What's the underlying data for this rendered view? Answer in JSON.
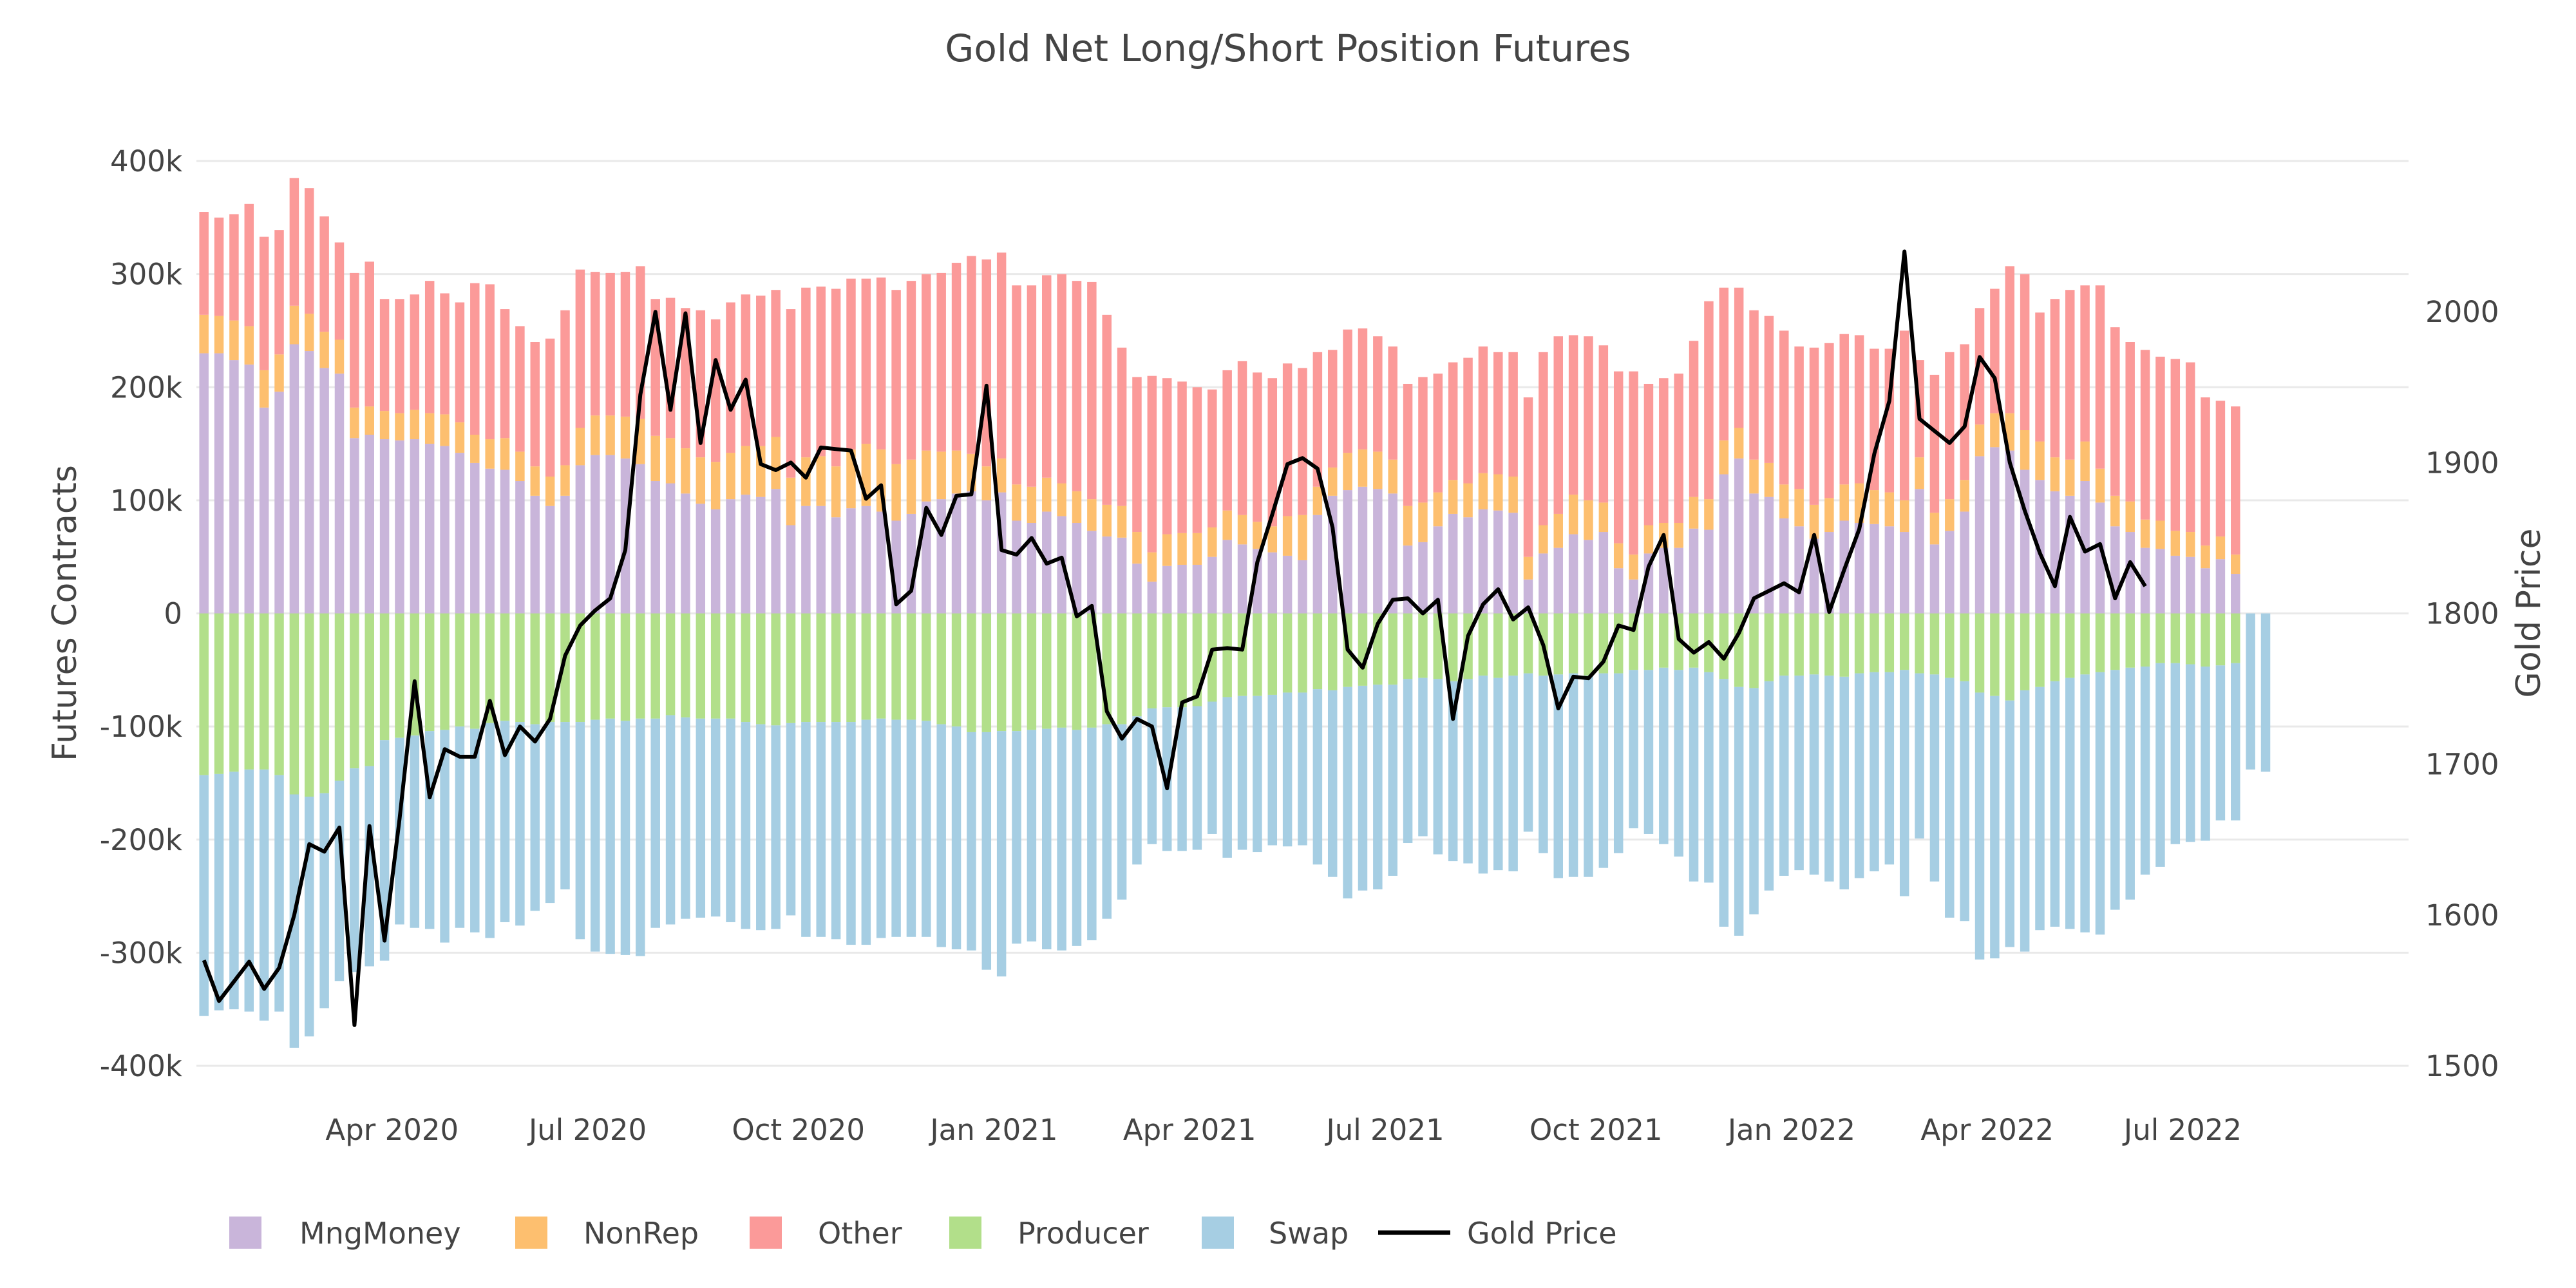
{
  "chart_data": {
    "type": "bar",
    "barmode": "relative",
    "title": "Gold Net Long/Short Position Futures",
    "ylabel": "Futures Contracts",
    "y2label": "Gold Price",
    "ylim": [
      -400000,
      400000
    ],
    "y2lim": [
      1500,
      2100
    ],
    "yticks": [
      -400000,
      -300000,
      -200000,
      -100000,
      0,
      100000,
      200000,
      300000,
      400000
    ],
    "ytick_labels": [
      "-400k",
      "-300k",
      "-200k",
      "-100k",
      "0",
      "100k",
      "200k",
      "300k",
      "400k"
    ],
    "y2ticks": [
      1500,
      1600,
      1700,
      1800,
      1900,
      2000
    ],
    "y2tick_labels": [
      "1500",
      "1600",
      "1700",
      "1800",
      "1900",
      "2000"
    ],
    "xlim": [
      0,
      147
    ],
    "xticks": [
      {
        "label": "Apr 2020",
        "index": 13
      },
      {
        "label": "Jul 2020",
        "index": 26
      },
      {
        "label": "Oct 2020",
        "index": 40
      },
      {
        "label": "Jan 2021",
        "index": 53
      },
      {
        "label": "Apr 2021",
        "index": 66
      },
      {
        "label": "Jul 2021",
        "index": 79
      },
      {
        "label": "Oct 2021",
        "index": 93
      },
      {
        "label": "Jan 2022",
        "index": 106
      },
      {
        "label": "Apr 2022",
        "index": 119
      },
      {
        "label": "Jul 2022",
        "index": 132
      }
    ],
    "legend_position": "bottom-left",
    "colors": {
      "MngMoney": "#c9b5da",
      "NonRep": "#fdbf6f",
      "Other": "#fb9a99",
      "Producer": "#b2df8a",
      "Swap": "#a6cee3",
      "Gold Price": "#000000"
    },
    "series": [
      {
        "name": "MngMoney",
        "type": "bar",
        "values": [
          230000,
          230000,
          224000,
          220000,
          182000,
          196000,
          238000,
          232000,
          217000,
          212000,
          155000,
          158000,
          154000,
          153000,
          154000,
          150000,
          148000,
          142000,
          133000,
          128000,
          127000,
          117000,
          104000,
          95000,
          104000,
          131000,
          140000,
          140000,
          137000,
          132000,
          117000,
          115000,
          106000,
          97000,
          92000,
          101000,
          105000,
          103000,
          110000,
          78000,
          95000,
          95000,
          85000,
          93000,
          95000,
          90000,
          82000,
          88000,
          99000,
          101000,
          106000,
          108000,
          100000,
          107000,
          82000,
          80000,
          90000,
          86000,
          80000,
          73000,
          68000,
          67000,
          44000,
          28000,
          42000,
          43000,
          43000,
          50000,
          65000,
          61000,
          57000,
          54000,
          51000,
          47000,
          87000,
          104000,
          109000,
          112000,
          110000,
          106000,
          60000,
          63000,
          77000,
          88000,
          85000,
          92000,
          91000,
          89000,
          30000,
          53000,
          58000,
          70000,
          65000,
          72000,
          40000,
          30000,
          53000,
          58000,
          58000,
          75000,
          74000,
          123000,
          137000,
          106000,
          103000,
          84000,
          77000,
          66000,
          72000,
          82000,
          80000,
          79000,
          77000,
          72000,
          110000,
          61000,
          73000,
          90000,
          139000,
          147000,
          144000,
          127000,
          118000,
          108000,
          104000,
          117000,
          98000,
          77000,
          72000,
          58000,
          57000,
          51000,
          50000,
          40000,
          48000,
          35000
        ]
      },
      {
        "name": "NonRep",
        "type": "bar",
        "values": [
          34000,
          33000,
          35000,
          34000,
          33000,
          33000,
          34000,
          33000,
          32000,
          30000,
          27000,
          25000,
          25000,
          24000,
          26000,
          27000,
          28000,
          27000,
          25000,
          26000,
          28000,
          26000,
          26000,
          26000,
          27000,
          33000,
          35000,
          35000,
          37000,
          40000,
          40000,
          40000,
          40000,
          41000,
          42000,
          41000,
          43000,
          45000,
          46000,
          42000,
          43000,
          44000,
          45000,
          52000,
          55000,
          55000,
          50000,
          48000,
          45000,
          42000,
          38000,
          33000,
          30000,
          30000,
          32000,
          32000,
          30000,
          29000,
          28000,
          28000,
          28000,
          28000,
          28000,
          26000,
          28000,
          28000,
          28000,
          26000,
          26000,
          26000,
          24000,
          23000,
          35000,
          40000,
          25000,
          25000,
          33000,
          33000,
          33000,
          30000,
          35000,
          35000,
          30000,
          30000,
          30000,
          32000,
          32000,
          32000,
          20000,
          25000,
          30000,
          35000,
          35000,
          26000,
          22000,
          22000,
          25000,
          22000,
          22000,
          28000,
          27000,
          30000,
          27000,
          30000,
          30000,
          30000,
          33000,
          30000,
          30000,
          32000,
          35000,
          30000,
          30000,
          28000,
          28000,
          28000,
          28000,
          28000,
          28000,
          30000,
          33000,
          35000,
          34000,
          30000,
          32000,
          35000,
          30000,
          27000,
          27000,
          25000,
          25000,
          22000,
          22000,
          20000,
          20000,
          17000
        ]
      },
      {
        "name": "Other",
        "type": "bar",
        "values": [
          91000,
          87000,
          94000,
          108000,
          118000,
          110000,
          113000,
          111000,
          102000,
          86000,
          119000,
          128000,
          99000,
          101000,
          102000,
          117000,
          107000,
          106000,
          134000,
          137000,
          114000,
          111000,
          110000,
          122000,
          137000,
          140000,
          127000,
          126000,
          128000,
          135000,
          121000,
          124000,
          124000,
          130000,
          126000,
          133000,
          134000,
          133000,
          130000,
          149000,
          150000,
          150000,
          157000,
          151000,
          146000,
          152000,
          154000,
          158000,
          156000,
          158000,
          166000,
          175000,
          183000,
          182000,
          176000,
          178000,
          179000,
          185000,
          186000,
          192000,
          168000,
          140000,
          137000,
          156000,
          138000,
          134000,
          129000,
          122000,
          124000,
          136000,
          132000,
          131000,
          135000,
          130000,
          119000,
          104000,
          109000,
          107000,
          102000,
          100000,
          108000,
          111000,
          105000,
          104000,
          111000,
          112000,
          108000,
          110000,
          141000,
          153000,
          157000,
          141000,
          145000,
          139000,
          152000,
          162000,
          125000,
          128000,
          132000,
          138000,
          175000,
          135000,
          124000,
          132000,
          130000,
          136000,
          126000,
          139000,
          137000,
          133000,
          131000,
          125000,
          127000,
          150000,
          86000,
          122000,
          130000,
          120000,
          103000,
          110000,
          130000,
          138000,
          114000,
          140000,
          150000,
          138000,
          162000,
          149000,
          141000,
          150000,
          145000,
          152000,
          150000,
          131000,
          120000,
          131000
        ]
      },
      {
        "name": "Producer",
        "type": "bar",
        "values": [
          -143000,
          -142000,
          -140000,
          -138000,
          -138000,
          -143000,
          -160000,
          -162000,
          -159000,
          -148000,
          -137000,
          -135000,
          -112000,
          -110000,
          -108000,
          -104000,
          -103000,
          -100000,
          -102000,
          -97000,
          -95000,
          -96000,
          -98000,
          -96000,
          -96000,
          -96000,
          -94000,
          -93000,
          -95000,
          -93000,
          -93000,
          -90000,
          -92000,
          -93000,
          -93000,
          -93000,
          -96000,
          -98000,
          -99000,
          -97000,
          -96000,
          -96000,
          -96000,
          -96000,
          -94000,
          -93000,
          -94000,
          -94000,
          -95000,
          -98000,
          -100000,
          -105000,
          -105000,
          -104000,
          -104000,
          -103000,
          -102000,
          -101000,
          -103000,
          -101000,
          -98000,
          -98000,
          -91000,
          -84000,
          -83000,
          -83000,
          -82000,
          -78000,
          -74000,
          -73000,
          -73000,
          -72000,
          -70000,
          -70000,
          -67000,
          -68000,
          -65000,
          -64000,
          -63000,
          -63000,
          -58000,
          -57000,
          -58000,
          -60000,
          -58000,
          -55000,
          -57000,
          -55000,
          -53000,
          -55000,
          -54000,
          -53000,
          -55000,
          -53000,
          -53000,
          -50000,
          -50000,
          -48000,
          -50000,
          -48000,
          -52000,
          -58000,
          -65000,
          -66000,
          -60000,
          -55000,
          -55000,
          -54000,
          -55000,
          -56000,
          -53000,
          -52000,
          -52000,
          -50000,
          -53000,
          -54000,
          -57000,
          -60000,
          -70000,
          -73000,
          -77000,
          -68000,
          -65000,
          -60000,
          -57000,
          -54000,
          -52000,
          -50000,
          -48000,
          -47000,
          -44000,
          -44000,
          -45000,
          -47000,
          -46000,
          -44000
        ]
      },
      {
        "name": "Swap",
        "type": "bar",
        "values": [
          -213000,
          -209000,
          -210000,
          -214000,
          -222000,
          -209000,
          -224000,
          -212000,
          -190000,
          -177000,
          -180000,
          -177000,
          -195000,
          -165000,
          -170000,
          -175000,
          -188000,
          -178000,
          -180000,
          -190000,
          -178000,
          -180000,
          -165000,
          -160000,
          -148000,
          -192000,
          -205000,
          -208000,
          -207000,
          -210000,
          -185000,
          -185000,
          -178000,
          -176000,
          -175000,
          -180000,
          -183000,
          -182000,
          -180000,
          -170000,
          -190000,
          -190000,
          -192000,
          -197000,
          -199000,
          -194000,
          -192000,
          -192000,
          -191000,
          -197000,
          -197000,
          -193000,
          -210000,
          -217000,
          -188000,
          -187000,
          -195000,
          -197000,
          -191000,
          -188000,
          -172000,
          -155000,
          -131000,
          -120000,
          -127000,
          -127000,
          -127000,
          -117000,
          -142000,
          -136000,
          -138000,
          -133000,
          -136000,
          -135000,
          -155000,
          -165000,
          -187000,
          -181000,
          -181000,
          -169000,
          -145000,
          -140000,
          -155000,
          -159000,
          -163000,
          -175000,
          -170000,
          -173000,
          -140000,
          -157000,
          -180000,
          -180000,
          -178000,
          -172000,
          -159000,
          -140000,
          -145000,
          -156000,
          -165000,
          -189000,
          -186000,
          -219000,
          -220000,
          -200000,
          -185000,
          -177000,
          -172000,
          -177000,
          -182000,
          -188000,
          -181000,
          -176000,
          -170000,
          -200000,
          -146000,
          -183000,
          -212000,
          -212000,
          -236000,
          -232000,
          -218000,
          -231000,
          -215000,
          -217000,
          -222000,
          -228000,
          -232000,
          -212000,
          -205000,
          -184000,
          -180000,
          -160000,
          -157000,
          -154000,
          -137000,
          -139000,
          -138000,
          -140000
        ]
      },
      {
        "name": "Gold Price",
        "type": "line",
        "values": [
          1570,
          1543,
          1556,
          1569,
          1551,
          1565,
          1600,
          1647,
          1642,
          1658,
          1527,
          1659,
          1583,
          1664,
          1755,
          1678,
          1710,
          1705,
          1705,
          1742,
          1706,
          1725,
          1715,
          1730,
          1772,
          1792,
          1802,
          1810,
          1842,
          1945,
          2000,
          1935,
          1999,
          1913,
          1968,
          1935,
          1955,
          1899,
          1895,
          1900,
          1890,
          1910,
          1909,
          1908,
          1876,
          1885,
          1806,
          1815,
          1870,
          1852,
          1878,
          1879,
          1951,
          1842,
          1839,
          1850,
          1833,
          1837,
          1798,
          1805,
          1735,
          1717,
          1730,
          1725,
          1684,
          1741,
          1745,
          1776,
          1777,
          1776,
          1834,
          1866,
          1899,
          1903,
          1896,
          1857,
          1776,
          1764,
          1793,
          1809,
          1810,
          1800,
          1809,
          1730,
          1785,
          1806,
          1816,
          1796,
          1804,
          1779,
          1737,
          1758,
          1757,
          1768,
          1792,
          1789,
          1831,
          1852,
          1783,
          1774,
          1781,
          1770,
          1787,
          1810,
          1815,
          1820,
          1814,
          1852,
          1801,
          1829,
          1856,
          1906,
          1941,
          2040,
          1929,
          1921,
          1913,
          1924,
          1970,
          1956,
          1900,
          1868,
          1840,
          1818,
          1864,
          1841,
          1846,
          1810,
          1834,
          1818
        ]
      }
    ],
    "legend": [
      "MngMoney",
      "NonRep",
      "Other",
      "Producer",
      "Swap",
      "Gold Price"
    ]
  }
}
